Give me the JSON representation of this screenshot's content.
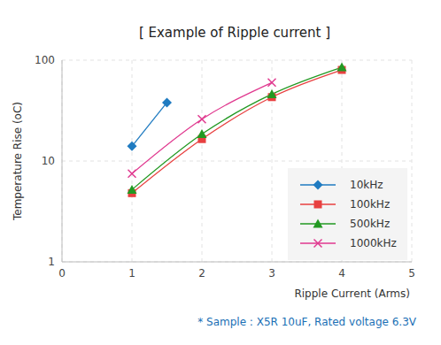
{
  "chart_data": {
    "type": "line",
    "title": "[ Example of Ripple current ]",
    "x_label": "Ripple Current (Arms)",
    "y_label": "Temperature Rise (oC)",
    "annotation": "* Sample : X5R 10uF, Rated voltage 6.3V",
    "xlim": [
      0,
      5
    ],
    "xticks": [
      0,
      1,
      2,
      3,
      4,
      5
    ],
    "ylim": [
      1,
      100
    ],
    "yticks": [
      1,
      10,
      100
    ],
    "log": "y",
    "grid": true,
    "legend": "lower right",
    "series": [
      {
        "name": "10kHz",
        "color": "#1f7bc1",
        "marker": "diamond",
        "x": [
          1,
          1.5
        ],
        "values": [
          14,
          38
        ]
      },
      {
        "name": "100kHz",
        "color": "#e84040",
        "marker": "square",
        "x": [
          1,
          2,
          3,
          4
        ],
        "values": [
          4.8,
          16.5,
          43,
          80
        ]
      },
      {
        "name": "500kHz",
        "color": "#229922",
        "marker": "triangle",
        "x": [
          1,
          2,
          3,
          4
        ],
        "values": [
          5.2,
          18.5,
          46,
          85
        ]
      },
      {
        "name": "1000kHz",
        "color": "#e0398f",
        "marker": "x",
        "x": [
          1,
          2,
          3
        ],
        "values": [
          7.5,
          26,
          60
        ]
      }
    ]
  }
}
